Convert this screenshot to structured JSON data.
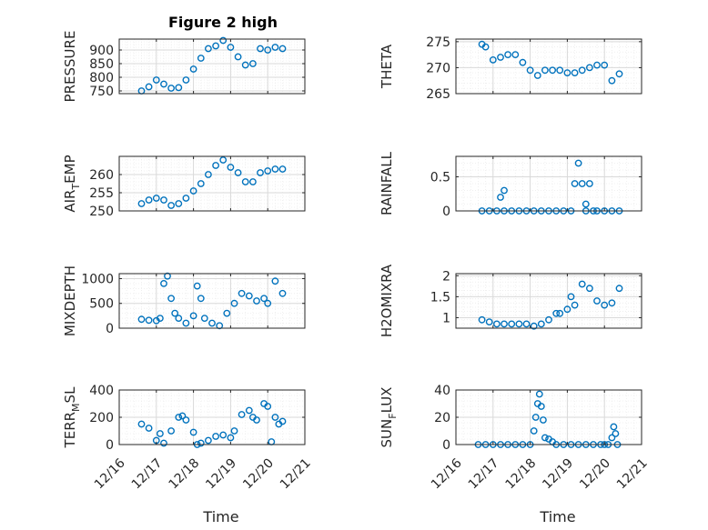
{
  "figure_title": "Figure 2 high",
  "colors": {
    "marker": "#0072BD",
    "axis": "#262626",
    "grid": "#d9d9d9",
    "minor_grid": "#ececec"
  },
  "chart_data": [
    {
      "type": "scatter",
      "ylabel": "PRESSURE",
      "title": "Figure 2 high",
      "xlim": [
        "12/16",
        "12/21"
      ],
      "ylim": [
        740,
        940
      ],
      "yticks": [
        750,
        800,
        850,
        900
      ],
      "ytick_labels": [
        "750",
        "800",
        "850",
        "900"
      ],
      "minor_grid": true,
      "show_xticklabels": false,
      "x": [
        16.6,
        16.8,
        17.0,
        17.2,
        17.4,
        17.6,
        17.8,
        18.0,
        18.2,
        18.4,
        18.6,
        18.8,
        19.0,
        19.2,
        19.4,
        19.6,
        19.8,
        20.0,
        20.2,
        20.4
      ],
      "y": [
        750,
        765,
        790,
        775,
        760,
        762,
        790,
        830,
        870,
        905,
        915,
        935,
        910,
        875,
        845,
        850,
        905,
        900,
        910,
        905
      ]
    },
    {
      "type": "scatter",
      "ylabel": "THETA",
      "xlim": [
        "12/16",
        "12/21"
      ],
      "ylim": [
        265,
        275.5
      ],
      "yticks": [
        265,
        270,
        275
      ],
      "ytick_labels": [
        "265",
        "270",
        "275"
      ],
      "minor_grid": true,
      "show_xticklabels": false,
      "x": [
        16.7,
        16.8,
        17.0,
        17.2,
        17.4,
        17.6,
        17.8,
        18.0,
        18.2,
        18.4,
        18.6,
        18.8,
        19.0,
        19.2,
        19.4,
        19.6,
        19.8,
        20.0,
        20.2,
        20.4
      ],
      "y": [
        274.5,
        274,
        271.5,
        272,
        272.5,
        272.5,
        271,
        269.5,
        268.5,
        269.5,
        269.5,
        269.5,
        269,
        269,
        269.5,
        270,
        270.5,
        270.5,
        267.5,
        268.8
      ]
    },
    {
      "type": "scatter",
      "ylabel": "AIR_TEMP",
      "xlim": [
        "12/16",
        "12/21"
      ],
      "ylim": [
        250,
        265
      ],
      "yticks": [
        250,
        255,
        260
      ],
      "ytick_labels": [
        "250",
        "255",
        "260"
      ],
      "minor_grid": true,
      "show_xticklabels": false,
      "x": [
        16.6,
        16.8,
        17.0,
        17.2,
        17.4,
        17.6,
        17.8,
        18.0,
        18.2,
        18.4,
        18.6,
        18.8,
        19.0,
        19.2,
        19.4,
        19.6,
        19.8,
        20.0,
        20.2,
        20.4
      ],
      "y": [
        252,
        253,
        253.5,
        253,
        251.5,
        252,
        253.5,
        255.5,
        257.5,
        260,
        262.5,
        264,
        262,
        260.5,
        258,
        258,
        260.5,
        261,
        261.5,
        261.5
      ]
    },
    {
      "type": "scatter",
      "ylabel": "RAINFALL",
      "xlim": [
        "12/16",
        "12/21"
      ],
      "ylim": [
        0,
        0.8
      ],
      "yticks": [
        0,
        0.5
      ],
      "ytick_labels": [
        "0",
        "0.5"
      ],
      "minor_grid": true,
      "show_xticklabels": false,
      "x": [
        16.7,
        16.9,
        17.1,
        17.2,
        17.3,
        17.3,
        17.5,
        17.7,
        17.9,
        18.1,
        18.3,
        18.5,
        18.7,
        18.9,
        19.1,
        19.2,
        19.3,
        19.4,
        19.5,
        19.5,
        19.6,
        19.7,
        19.8,
        20.0,
        20.2,
        20.4
      ],
      "y": [
        0,
        0,
        0,
        0.2,
        0.3,
        0,
        0,
        0,
        0,
        0,
        0,
        0,
        0,
        0,
        0,
        0.4,
        0.7,
        0.4,
        0.1,
        0,
        0.4,
        0,
        0,
        0,
        0,
        0
      ]
    },
    {
      "type": "scatter",
      "ylabel": "MIXDEPTH",
      "xlim": [
        "12/16",
        "12/21"
      ],
      "ylim": [
        0,
        1100
      ],
      "yticks": [
        0,
        500,
        1000
      ],
      "ytick_labels": [
        "0",
        "500",
        "1000"
      ],
      "minor_grid": true,
      "show_xticklabels": false,
      "x": [
        16.6,
        16.8,
        17.0,
        17.1,
        17.2,
        17.3,
        17.4,
        17.5,
        17.6,
        17.8,
        18.0,
        18.1,
        18.2,
        18.3,
        18.5,
        18.7,
        18.9,
        19.1,
        19.3,
        19.5,
        19.7,
        19.9,
        20.0,
        20.2,
        20.4
      ],
      "y": [
        180,
        160,
        150,
        200,
        900,
        1050,
        600,
        300,
        200,
        100,
        250,
        850,
        600,
        200,
        100,
        50,
        300,
        500,
        700,
        650,
        550,
        600,
        500,
        950,
        700
      ]
    },
    {
      "type": "scatter",
      "ylabel": "H2OMIXRA",
      "xlim": [
        "12/16",
        "12/21"
      ],
      "ylim": [
        0.75,
        2.05
      ],
      "yticks": [
        1,
        1.5,
        2
      ],
      "ytick_labels": [
        "1",
        "1.5",
        "2"
      ],
      "minor_grid": true,
      "show_xticklabels": false,
      "x": [
        16.7,
        16.9,
        17.1,
        17.3,
        17.5,
        17.7,
        17.9,
        18.1,
        18.3,
        18.5,
        18.7,
        18.8,
        19.0,
        19.1,
        19.2,
        19.4,
        19.6,
        19.8,
        20.0,
        20.2,
        20.4
      ],
      "y": [
        0.95,
        0.9,
        0.85,
        0.85,
        0.85,
        0.85,
        0.85,
        0.8,
        0.85,
        0.95,
        1.1,
        1.1,
        1.2,
        1.5,
        1.3,
        1.8,
        1.7,
        1.4,
        1.3,
        1.35,
        1.7
      ]
    },
    {
      "type": "scatter",
      "ylabel": "TERR_MSL",
      "xlim": [
        "12/16",
        "12/21"
      ],
      "ylim": [
        0,
        400
      ],
      "yticks": [
        0,
        200,
        400
      ],
      "ytick_labels": [
        "0",
        "200",
        "400"
      ],
      "minor_grid": true,
      "show_xticklabels": true,
      "xticks": [
        16,
        17,
        18,
        19,
        20,
        21
      ],
      "xtick_labels": [
        "12/16",
        "12/17",
        "12/18",
        "12/19",
        "12/20",
        "12/21"
      ],
      "xlabel": "Time",
      "x": [
        16.6,
        16.8,
        17.0,
        17.1,
        17.2,
        17.4,
        17.6,
        17.7,
        17.8,
        18.0,
        18.1,
        18.2,
        18.4,
        18.6,
        18.8,
        19.0,
        19.1,
        19.3,
        19.5,
        19.6,
        19.7,
        19.9,
        20.0,
        20.1,
        20.2,
        20.3,
        20.4
      ],
      "y": [
        150,
        120,
        30,
        80,
        10,
        100,
        200,
        210,
        180,
        90,
        0,
        10,
        30,
        60,
        70,
        50,
        100,
        220,
        250,
        200,
        180,
        300,
        280,
        20,
        200,
        150,
        170
      ]
    },
    {
      "type": "scatter",
      "ylabel": "SUN_FLUX",
      "xlim": [
        "12/16",
        "12/21"
      ],
      "ylim": [
        0,
        40
      ],
      "yticks": [
        0,
        20,
        40
      ],
      "ytick_labels": [
        "0",
        "20",
        "40"
      ],
      "minor_grid": true,
      "show_xticklabels": true,
      "xticks": [
        16,
        17,
        18,
        19,
        20,
        21
      ],
      "xtick_labels": [
        "12/16",
        "12/17",
        "12/18",
        "12/19",
        "12/20",
        "12/21"
      ],
      "xlabel": "Time",
      "x": [
        16.6,
        16.8,
        17.0,
        17.2,
        17.4,
        17.6,
        17.8,
        18.0,
        18.1,
        18.15,
        18.2,
        18.25,
        18.3,
        18.35,
        18.4,
        18.5,
        18.6,
        18.7,
        18.9,
        19.1,
        19.3,
        19.5,
        19.7,
        19.9,
        20.0,
        20.1,
        20.2,
        20.25,
        20.3,
        20.35
      ],
      "y": [
        0,
        0,
        0,
        0,
        0,
        0,
        0,
        0,
        10,
        20,
        30,
        37,
        28,
        18,
        5,
        4,
        2,
        0,
        0,
        0,
        0,
        0,
        0,
        0,
        0,
        0,
        5,
        13,
        8,
        0
      ]
    }
  ]
}
